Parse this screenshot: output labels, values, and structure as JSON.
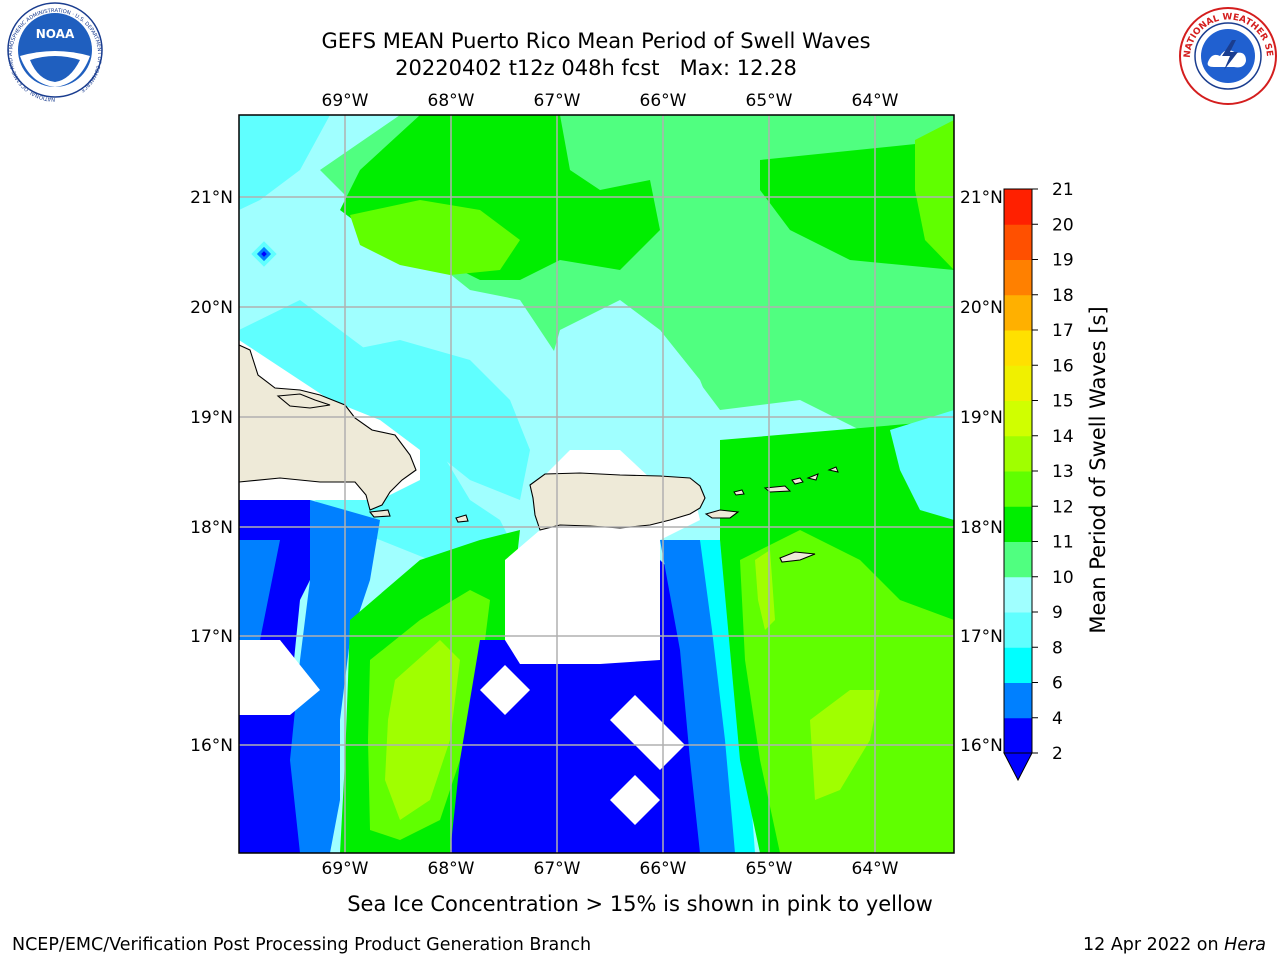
{
  "title": {
    "line1": "GEFS MEAN Puerto Rico Mean Period of Swell Waves",
    "line2": "20220402 t12z 048h fcst   Max: 12.28"
  },
  "map": {
    "lon_labels": [
      "69°W",
      "68°W",
      "67°W",
      "66°W",
      "65°W",
      "64°W"
    ],
    "lat_labels": [
      "21°N",
      "20°N",
      "19°N",
      "18°N",
      "17°N",
      "16°N"
    ],
    "lon_values": [
      -69,
      -68,
      -67,
      -66,
      -65,
      -64
    ],
    "lat_values": [
      21,
      20,
      19,
      18,
      17,
      16
    ],
    "lon_range": [
      -70,
      -63.25
    ],
    "lat_range": [
      15,
      21.75
    ],
    "grid": true,
    "land_color": "#eeead8",
    "gridline_color": "#b0b0b0"
  },
  "colorbar": {
    "label": "Mean Period of Swell Waves [s]",
    "tick_labels": [
      "2",
      "4",
      "6",
      "8",
      "9",
      "10",
      "11",
      "12",
      "13",
      "14",
      "15",
      "16",
      "17",
      "18",
      "19",
      "20",
      "21"
    ],
    "colors": [
      "#0000ff",
      "#0080ff",
      "#00ffff",
      "#60ffff",
      "#a0ffff",
      "#50ff80",
      "#00ee00",
      "#60ff00",
      "#a0ff00",
      "#d0ff00",
      "#f0f000",
      "#ffe000",
      "#ffb000",
      "#ff8000",
      "#ff5000",
      "#ff2000"
    ],
    "under_color": "#0000ff"
  },
  "footer": {
    "sea_ice_note": "Sea Ice Concentration > 15% is shown in pink to yellow",
    "left_credit": "NCEP/EMC/Verification Post Processing Product Generation Branch",
    "date": "12 Apr 2022 on ",
    "host": "Hera"
  },
  "logos": {
    "noaa": {
      "text": "NOAA",
      "ring_text": "NATIONAL OCEANIC AND ATMOSPHERIC ADMINISTRATION · U.S. DEPARTMENT OF COMMERCE"
    },
    "nws": {
      "ring_text": "NATIONAL WEATHER SERVICE"
    }
  }
}
